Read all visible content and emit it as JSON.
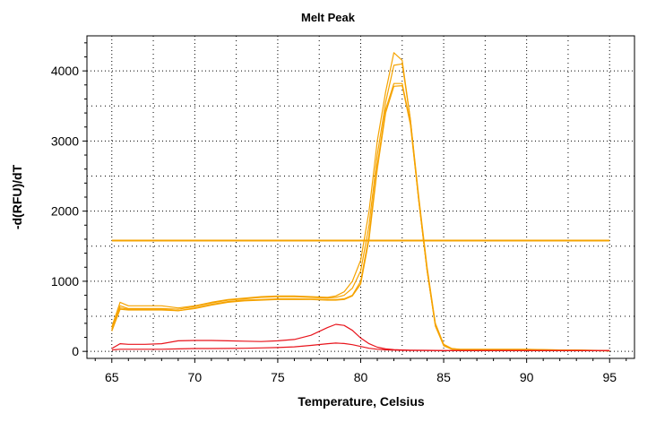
{
  "chart_data": {
    "type": "line",
    "title": "Melt Peak",
    "xlabel": "Temperature, Celsius",
    "ylabel": "-d(RFU)/dT",
    "xlim": [
      63.5,
      96.5
    ],
    "ylim": [
      -100,
      4500
    ],
    "x_ticks": [
      65,
      70,
      75,
      80,
      85,
      90,
      95
    ],
    "y_ticks": [
      0,
      1000,
      2000,
      3000,
      4000
    ],
    "grid": true,
    "threshold": {
      "value": 1580,
      "x_range": [
        65,
        95
      ],
      "color": "#f5a300"
    },
    "colors": {
      "orange_trace": "#f5a300",
      "red_trace": "#e8141c",
      "grid": "#000000"
    },
    "series": [
      {
        "color": "#f5a300",
        "x": [
          65,
          65.5,
          66,
          67,
          68,
          69,
          70,
          71,
          72,
          73,
          74,
          75,
          76,
          77,
          78,
          78.5,
          79,
          79.5,
          80,
          80.5,
          81,
          81.5,
          82,
          82.5,
          83,
          83.5,
          84,
          84.5,
          85,
          85.5,
          86,
          87,
          88,
          89,
          90,
          91,
          92,
          93,
          94,
          95
        ],
        "values": [
          350,
          700,
          650,
          650,
          650,
          620,
          650,
          700,
          740,
          760,
          780,
          790,
          790,
          780,
          770,
          790,
          850,
          1000,
          1300,
          2000,
          3000,
          3700,
          4260,
          4150,
          3300,
          2200,
          1200,
          400,
          100,
          40,
          30,
          30,
          30,
          30,
          30,
          25,
          20,
          20,
          15,
          10
        ]
      },
      {
        "color": "#f5a300",
        "x": [
          65,
          65.5,
          66,
          67,
          68,
          69,
          70,
          71,
          72,
          73,
          74,
          75,
          76,
          77,
          78,
          78.5,
          79,
          79.5,
          80,
          80.5,
          81,
          81.5,
          82,
          82.5,
          83,
          83.5,
          84,
          84.5,
          85,
          85.5,
          86,
          87,
          88,
          89,
          90,
          91,
          92,
          93,
          94,
          95
        ],
        "values": [
          320,
          650,
          610,
          610,
          610,
          600,
          640,
          690,
          730,
          750,
          770,
          780,
          780,
          770,
          760,
          770,
          800,
          900,
          1150,
          1800,
          2800,
          3550,
          4080,
          4100,
          3300,
          2150,
          1150,
          380,
          90,
          35,
          28,
          28,
          28,
          28,
          28,
          24,
          20,
          18,
          14,
          10
        ]
      },
      {
        "color": "#f5a300",
        "x": [
          65,
          65.5,
          66,
          67,
          68,
          69,
          70,
          71,
          72,
          73,
          74,
          75,
          76,
          77,
          78,
          78.5,
          79,
          79.5,
          80,
          80.5,
          81,
          81.5,
          82,
          82.5,
          83,
          83.5,
          84,
          84.5,
          85,
          85.5,
          86,
          87,
          88,
          89,
          90,
          91,
          92,
          93,
          94,
          95
        ],
        "values": [
          300,
          620,
          600,
          600,
          600,
          580,
          620,
          670,
          710,
          730,
          740,
          750,
          750,
          745,
          740,
          740,
          750,
          800,
          1000,
          1650,
          2650,
          3450,
          3820,
          3820,
          3250,
          2150,
          1150,
          370,
          85,
          32,
          26,
          26,
          26,
          26,
          26,
          22,
          18,
          16,
          12,
          8
        ]
      },
      {
        "color": "#f5a300",
        "x": [
          65,
          65.5,
          66,
          67,
          68,
          69,
          70,
          71,
          72,
          73,
          74,
          75,
          76,
          77,
          78,
          78.5,
          79,
          79.5,
          80,
          80.5,
          81,
          81.5,
          82,
          82.5,
          83,
          83.5,
          84,
          84.5,
          85,
          85.5,
          86,
          87,
          88,
          89,
          90,
          91,
          92,
          93,
          94,
          95
        ],
        "values": [
          290,
          600,
          590,
          590,
          590,
          580,
          610,
          660,
          700,
          720,
          730,
          740,
          740,
          740,
          730,
          730,
          740,
          790,
          960,
          1600,
          2600,
          3400,
          3780,
          3790,
          3230,
          2150,
          1150,
          360,
          80,
          30,
          25,
          25,
          25,
          25,
          25,
          20,
          16,
          14,
          10,
          6
        ]
      },
      {
        "color": "#e8141c",
        "x": [
          65,
          65.5,
          66,
          67,
          68,
          69,
          70,
          71,
          72,
          73,
          74,
          75,
          76,
          77,
          78,
          78.5,
          79,
          79.5,
          80,
          80.5,
          81,
          81.5,
          82,
          82.5,
          83,
          84,
          85,
          86,
          87,
          88,
          89,
          90,
          91,
          92,
          93,
          94,
          95
        ],
        "values": [
          40,
          110,
          100,
          100,
          110,
          150,
          155,
          155,
          150,
          145,
          140,
          150,
          170,
          230,
          340,
          385,
          370,
          300,
          190,
          110,
          60,
          35,
          25,
          20,
          18,
          15,
          12,
          10,
          10,
          10,
          10,
          10,
          10,
          10,
          10,
          10,
          10
        ]
      },
      {
        "color": "#e8141c",
        "x": [
          65,
          65.5,
          66,
          67,
          68,
          69,
          70,
          71,
          72,
          73,
          74,
          75,
          76,
          77,
          78,
          78.5,
          79,
          79.5,
          80,
          80.5,
          81,
          81.5,
          82,
          82.5,
          83,
          84,
          85,
          86,
          87,
          88,
          89,
          90,
          91,
          92,
          93,
          94,
          95
        ],
        "values": [
          20,
          30,
          30,
          30,
          30,
          35,
          40,
          40,
          42,
          45,
          50,
          55,
          65,
          85,
          110,
          118,
          112,
          95,
          70,
          45,
          30,
          22,
          18,
          15,
          14,
          12,
          10,
          10,
          10,
          10,
          10,
          10,
          10,
          10,
          10,
          10,
          10
        ]
      }
    ]
  }
}
